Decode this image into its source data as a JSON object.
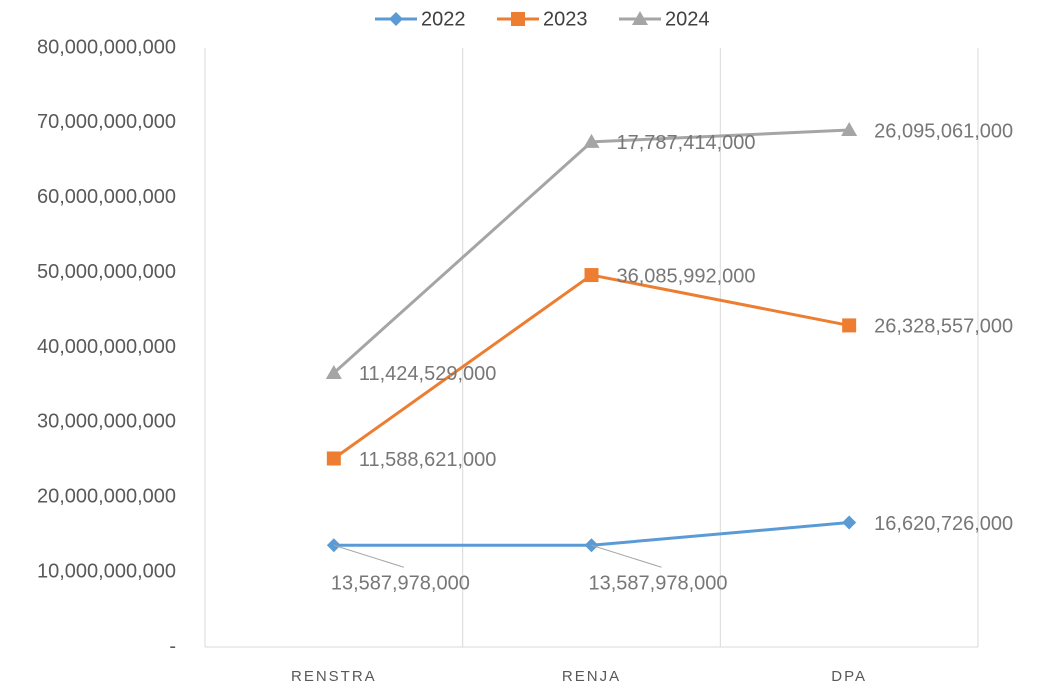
{
  "chart_data": {
    "type": "line",
    "stacked": true,
    "categories": [
      "RENSTRA",
      "RENJA",
      "DPA"
    ],
    "series": [
      {
        "name": "2022",
        "color": "#5b9bd5",
        "marker": "diamond",
        "values": [
          13587978000,
          13587978000,
          16620726000
        ],
        "value_labels": [
          "13,587,978,000",
          "13,587,978,000",
          "16,620,726,000"
        ]
      },
      {
        "name": "2023",
        "color": "#ed7d31",
        "marker": "square",
        "values": [
          11588621000,
          36085992000,
          26328557000
        ],
        "value_labels": [
          "11,588,621,000",
          "36,085,992,000",
          "26,328,557,000"
        ]
      },
      {
        "name": "2024",
        "color": "#a5a5a5",
        "marker": "triangle",
        "values": [
          11424529000,
          17787414000,
          26095061000
        ],
        "value_labels": [
          "11,424,529,000",
          "17,787,414,000",
          "26,095,061,000"
        ]
      }
    ],
    "ylim": [
      0,
      80000000000
    ],
    "yticks": [
      {
        "value": 0,
        "label": "-"
      },
      {
        "value": 10000000000,
        "label": "10,000,000,000"
      },
      {
        "value": 20000000000,
        "label": "20,000,000,000"
      },
      {
        "value": 30000000000,
        "label": "30,000,000,000"
      },
      {
        "value": 40000000000,
        "label": "40,000,000,000"
      },
      {
        "value": 50000000000,
        "label": "50,000,000,000"
      },
      {
        "value": 60000000000,
        "label": "60,000,000,000"
      },
      {
        "value": 70000000000,
        "label": "70,000,000,000"
      },
      {
        "value": 80000000000,
        "label": "80,000,000,000"
      }
    ],
    "legend": "top"
  }
}
